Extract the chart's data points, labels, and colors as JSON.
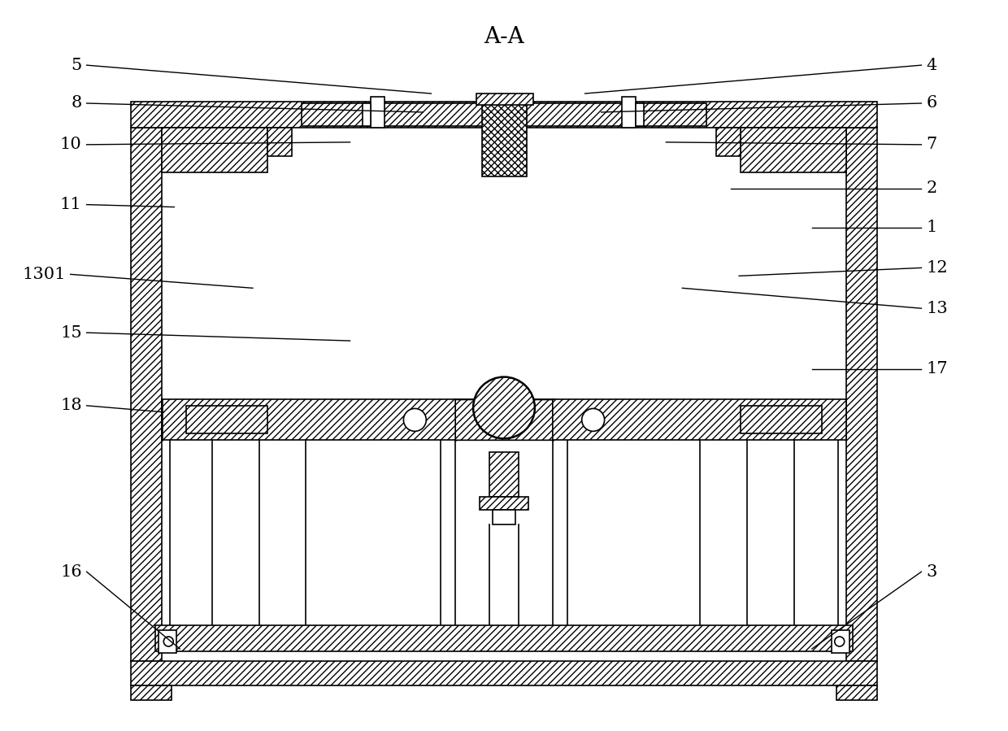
{
  "title": "A-A",
  "bg_color": "#ffffff",
  "line_color": "#000000",
  "fig_width": 12.4,
  "fig_height": 8.99,
  "label_fontsize": 15,
  "title_fontsize": 20
}
